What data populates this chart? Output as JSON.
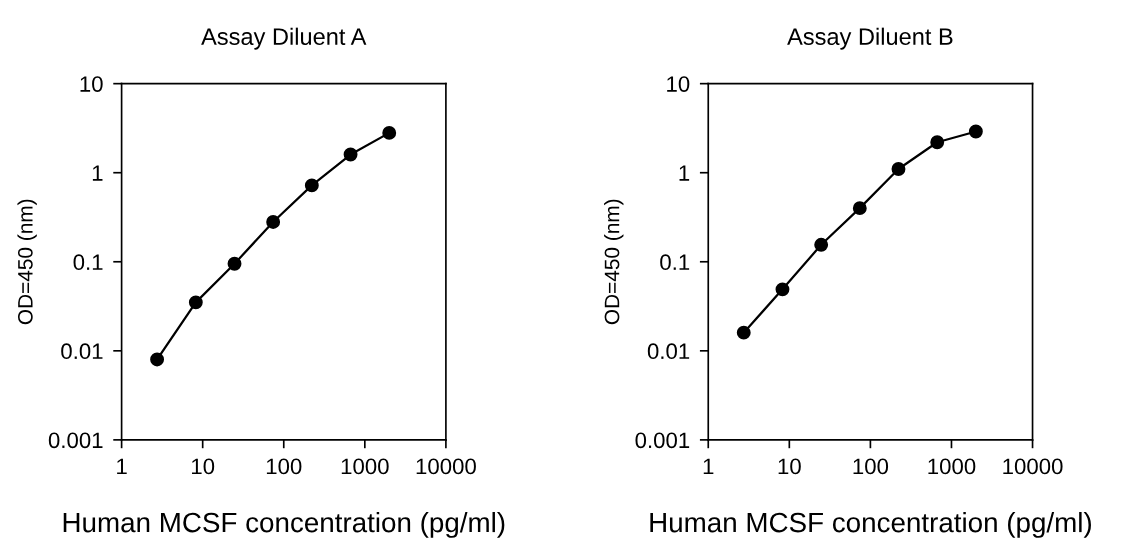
{
  "chart_data": [
    {
      "type": "line",
      "title": "Assay Diluent A",
      "xlabel": "Human MCSF concentration (pg/ml)",
      "ylabel": "OD=450 (nm)",
      "log": "xy",
      "marker": "circle",
      "line_style": "solid",
      "grid": false,
      "legend": false,
      "x": [
        2.74,
        8.23,
        24.7,
        74,
        222,
        667,
        2000
      ],
      "series": [
        {
          "color": "#000000",
          "values": [
            0.008,
            0.035,
            0.095,
            0.28,
            0.72,
            1.6,
            2.8
          ]
        }
      ],
      "xlim": [
        1,
        10000
      ],
      "xticks": [
        1,
        10,
        100,
        1000,
        10000
      ],
      "ylim": [
        0.001,
        10
      ],
      "yticks": [
        0.001,
        0.01,
        0.1,
        1,
        10
      ]
    },
    {
      "type": "line",
      "title": "Assay Diluent B",
      "xlabel": "Human MCSF concentration (pg/ml)",
      "ylabel": "OD=450 (nm)",
      "log": "xy",
      "marker": "circle",
      "line_style": "solid",
      "grid": false,
      "legend": false,
      "x": [
        2.74,
        8.23,
        24.7,
        74,
        222,
        667,
        2000
      ],
      "series": [
        {
          "color": "#000000",
          "values": [
            0.016,
            0.049,
            0.155,
            0.4,
            1.1,
            2.2,
            2.9
          ]
        }
      ],
      "xlim": [
        1,
        10000
      ],
      "xticks": [
        1,
        10,
        100,
        1000,
        10000
      ],
      "ylim": [
        0.001,
        10
      ],
      "yticks": [
        0.001,
        0.01,
        0.1,
        1,
        10
      ]
    }
  ]
}
